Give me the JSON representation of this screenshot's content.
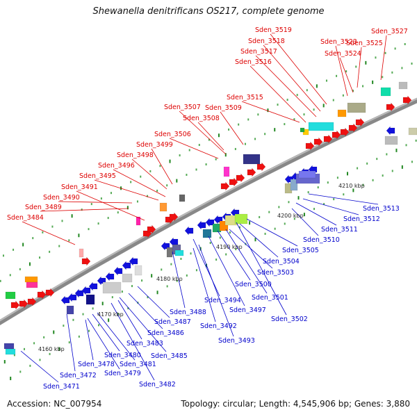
{
  "title": "Shewanella denitrificans OS217, complete genome",
  "footer": {
    "accession": "Accession: NC_007954",
    "stats": "Topology: circular; Length: 4,545,906 bp; Genes: 3,880"
  },
  "colors": {
    "forward_label": "#dd0000",
    "reverse_label": "#0000cc",
    "backbone": "#888888"
  },
  "tick_labels": [
    "4160 kbp",
    "4170 kbp",
    "4180 kbp",
    "4190 kbp",
    "4200 kbp",
    "4210 kbp"
  ],
  "forward_labels": [
    "Sden_3484",
    "Sden_3489",
    "Sden_3490",
    "Sden_3491",
    "Sden_3495",
    "Sden_3496",
    "Sden_3498",
    "Sden_3499",
    "Sden_3506",
    "Sden_3507",
    "Sden_3508",
    "Sden_3509",
    "Sden_3515",
    "Sden_3516",
    "Sden_3517",
    "Sden_3518",
    "Sden_3519",
    "Sden_3523",
    "Sden_3524",
    "Sden_3525",
    "Sden_3527"
  ],
  "reverse_labels": [
    "Sden_3471",
    "Sden_3472",
    "Sden_3478",
    "Sden_3479",
    "Sden_3480",
    "Sden_3481",
    "Sden_3482",
    "Sden_3483",
    "Sden_3485",
    "Sden_3486",
    "Sden_3487",
    "Sden_3488",
    "Sden_3492",
    "Sden_3493",
    "Sden_3494",
    "Sden_3497",
    "Sden_3500",
    "Sden_3501",
    "Sden_3502",
    "Sden_3503",
    "Sden_3504",
    "Sden_3505",
    "Sden_3510",
    "Sden_3511",
    "Sden_3512",
    "Sden_3513"
  ]
}
